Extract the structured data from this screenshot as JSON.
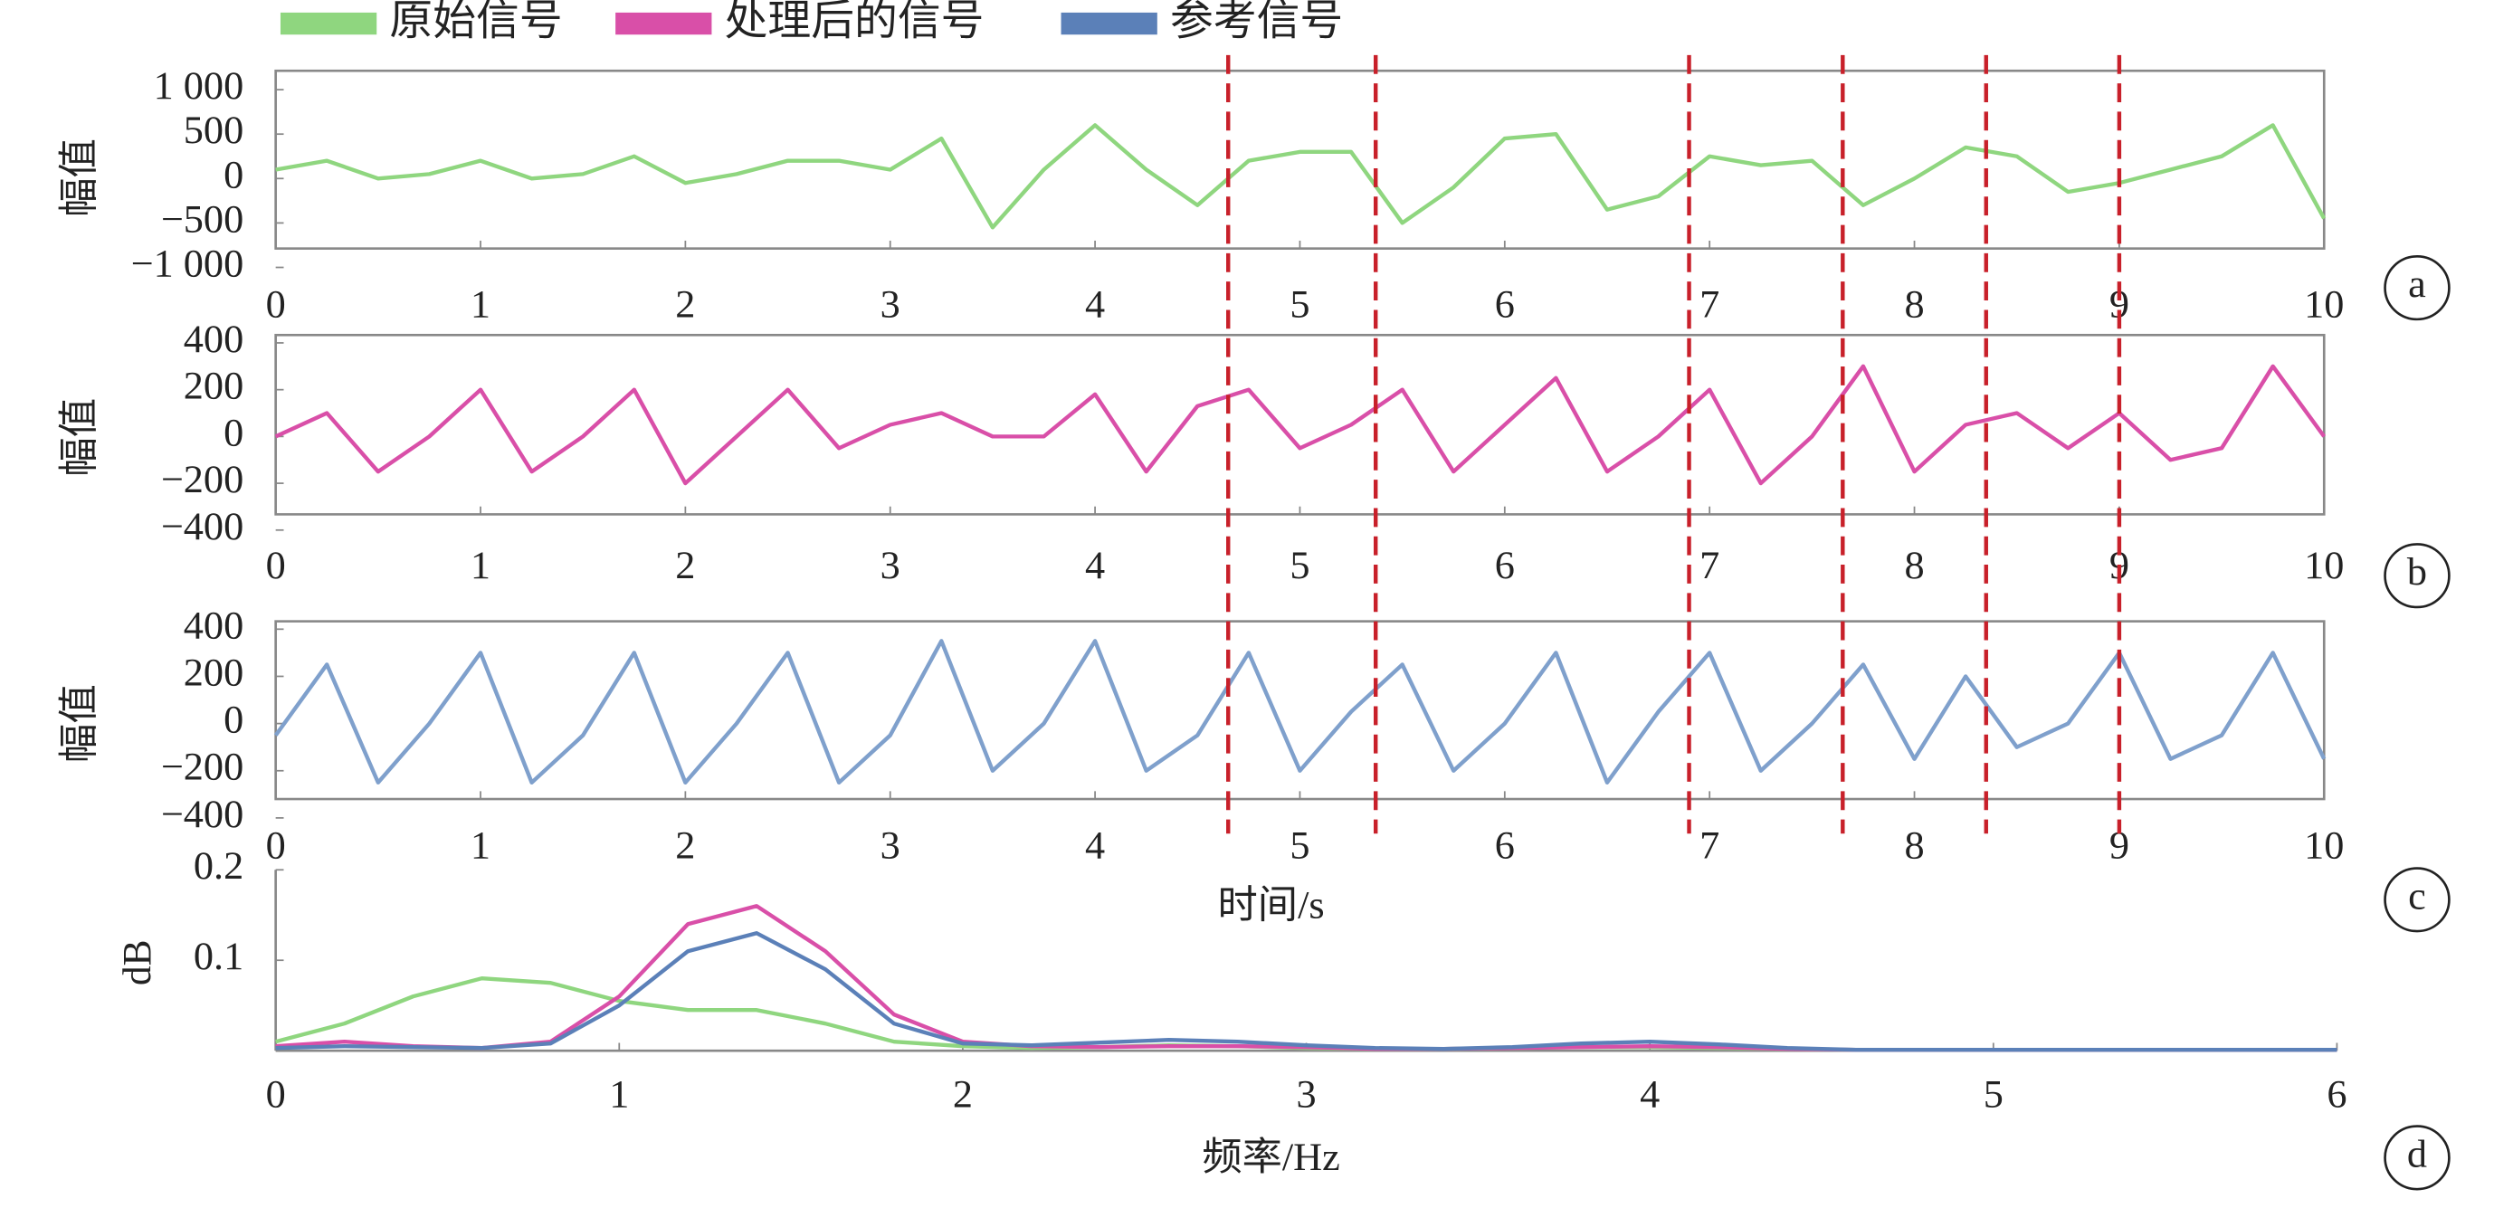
{
  "chart_data": [
    {
      "type": "line",
      "label": "a",
      "ylabel": "幅值",
      "x": [
        0,
        0.25,
        0.5,
        0.75,
        1,
        1.25,
        1.5,
        1.75,
        2,
        2.25,
        2.5,
        2.75,
        3,
        3.25,
        3.5,
        3.75,
        4,
        4.25,
        4.5,
        4.75,
        5,
        5.25,
        5.5,
        5.75,
        6,
        6.25,
        6.5,
        6.75,
        7,
        7.25,
        7.5,
        7.75,
        8,
        8.25,
        8.5,
        8.75,
        9,
        9.25,
        9.5,
        9.75,
        10
      ],
      "series": [
        {
          "name": "原始信号",
          "color": "#8fd67f",
          "values": [
            100,
            200,
            0,
            50,
            200,
            0,
            50,
            250,
            -50,
            50,
            200,
            200,
            100,
            450,
            -550,
            100,
            600,
            100,
            -300,
            200,
            300,
            300,
            -500,
            -100,
            450,
            500,
            -350,
            -200,
            250,
            150,
            200,
            -300,
            0,
            350,
            250,
            -150,
            -50,
            100,
            250,
            600,
            -450
          ]
        }
      ],
      "xlim": [
        0,
        10
      ],
      "xticks": [
        0,
        1,
        2,
        3,
        4,
        5,
        6,
        7,
        8,
        9,
        10
      ],
      "ylim": [
        -1000,
        1000
      ],
      "yticks": [
        {
          "value": 1000,
          "label": "1 000"
        },
        500,
        0,
        {
          "value": -500,
          "label": "−500"
        },
        {
          "value": -1000,
          "label": "−1 000"
        }
      ]
    },
    {
      "type": "line",
      "label": "b",
      "ylabel": "幅值",
      "x": [
        0,
        0.25,
        0.5,
        0.75,
        1,
        1.25,
        1.5,
        1.75,
        2,
        2.25,
        2.5,
        2.75,
        3,
        3.25,
        3.5,
        3.75,
        4,
        4.25,
        4.5,
        4.75,
        5,
        5.25,
        5.5,
        5.75,
        6,
        6.25,
        6.5,
        6.75,
        7,
        7.25,
        7.5,
        7.75,
        8,
        8.25,
        8.5,
        8.75,
        9,
        9.25,
        9.5,
        9.75,
        10
      ],
      "series": [
        {
          "name": "处理后的信号",
          "color": "#d94fa8",
          "values": [
            0,
            100,
            -150,
            0,
            200,
            -150,
            0,
            200,
            -200,
            0,
            200,
            -50,
            50,
            100,
            0,
            0,
            180,
            -150,
            130,
            200,
            -50,
            50,
            200,
            -150,
            50,
            250,
            -150,
            0,
            200,
            -200,
            0,
            300,
            -150,
            50,
            100,
            -50,
            100,
            -100,
            -50,
            300,
            0
          ]
        }
      ],
      "xlim": [
        0,
        10
      ],
      "xticks": [
        0,
        1,
        2,
        3,
        4,
        5,
        6,
        7,
        8,
        9,
        10
      ],
      "ylim": [
        -400,
        400
      ],
      "yticks": [
        400,
        200,
        0,
        {
          "value": -200,
          "label": "−200"
        },
        {
          "value": -400,
          "label": "−400"
        }
      ]
    },
    {
      "type": "line",
      "label": "c",
      "ylabel": "幅值",
      "xlabel": "时间/s",
      "x": [
        0,
        0.25,
        0.5,
        0.75,
        1,
        1.25,
        1.5,
        1.75,
        2,
        2.25,
        2.5,
        2.75,
        3,
        3.25,
        3.5,
        3.75,
        4,
        4.25,
        4.5,
        4.75,
        5,
        5.25,
        5.5,
        5.75,
        6,
        6.25,
        6.5,
        6.75,
        7,
        7.25,
        7.5,
        7.75,
        8,
        8.25,
        8.5,
        8.75,
        9,
        9.25,
        9.5,
        9.75,
        10
      ],
      "series": [
        {
          "name": "参考信号",
          "color": "#7fa0cc",
          "values": [
            -50,
            250,
            -250,
            0,
            300,
            -250,
            -50,
            300,
            -250,
            0,
            300,
            -250,
            -50,
            350,
            -200,
            0,
            350,
            -200,
            -50,
            300,
            -200,
            50,
            250,
            -200,
            0,
            300,
            -250,
            50,
            300,
            -200,
            0,
            250,
            -150,
            200,
            -100,
            0,
            300,
            -150,
            -50,
            300,
            -150
          ]
        }
      ],
      "xlim": [
        0,
        10
      ],
      "xticks": [
        0,
        1,
        2,
        3,
        4,
        5,
        6,
        7,
        8,
        9,
        10
      ],
      "ylim": [
        -400,
        400
      ],
      "yticks": [
        400,
        200,
        0,
        {
          "value": -200,
          "label": "−200"
        },
        {
          "value": -400,
          "label": "−400"
        }
      ]
    },
    {
      "type": "line",
      "label": "d",
      "ylabel": "dB",
      "xlabel": "频率/Hz",
      "x": [
        0,
        0.2,
        0.4,
        0.6,
        0.8,
        1,
        1.2,
        1.4,
        1.6,
        1.8,
        2,
        2.2,
        2.4,
        2.6,
        2.8,
        3,
        3.2,
        3.4,
        3.6,
        3.8,
        4,
        4.2,
        4.4,
        4.6,
        4.8,
        5,
        5.2,
        5.4,
        5.6,
        5.8,
        6
      ],
      "series": [
        {
          "name": "原始信号",
          "color": "#8fd67f",
          "values": [
            0.01,
            0.03,
            0.06,
            0.08,
            0.075,
            0.055,
            0.045,
            0.045,
            0.03,
            0.01,
            0.005,
            0.003,
            0.004,
            0.006,
            0.005,
            0.003,
            0.002,
            0.002,
            0.003,
            0.004,
            0.004,
            0.003,
            0.002,
            0.001,
            0.001,
            0.001,
            0.001,
            0.001,
            0.001,
            0.001,
            0.001
          ]
        },
        {
          "name": "处理后的信号",
          "color": "#d94fa8",
          "values": [
            0.005,
            0.01,
            0.005,
            0.003,
            0.01,
            0.06,
            0.14,
            0.16,
            0.11,
            0.04,
            0.01,
            0.005,
            0.004,
            0.005,
            0.005,
            0.004,
            0.002,
            0.002,
            0.003,
            0.004,
            0.005,
            0.004,
            0.002,
            0.001,
            0.001,
            0.001,
            0.001,
            0.001,
            0.001,
            0.001,
            0.001
          ]
        },
        {
          "name": "参考信号",
          "color": "#5b80b8",
          "values": [
            0.003,
            0.005,
            0.004,
            0.003,
            0.008,
            0.05,
            0.11,
            0.13,
            0.09,
            0.03,
            0.008,
            0.006,
            0.009,
            0.012,
            0.01,
            0.006,
            0.003,
            0.002,
            0.004,
            0.008,
            0.01,
            0.007,
            0.003,
            0.001,
            0.001,
            0.001,
            0.001,
            0.001,
            0.001,
            0.001,
            0.001
          ]
        }
      ],
      "xlim": [
        0,
        6
      ],
      "xticks": [
        0,
        1,
        2,
        3,
        4,
        5,
        6
      ],
      "ylim": [
        0,
        0.2
      ],
      "yticks": [
        0.1,
        0.2
      ]
    }
  ],
  "reference_lines": {
    "x": [
      4.65,
      5.37,
      6.9,
      7.65,
      8.35,
      9
    ],
    "color": "#c8202a"
  }
}
